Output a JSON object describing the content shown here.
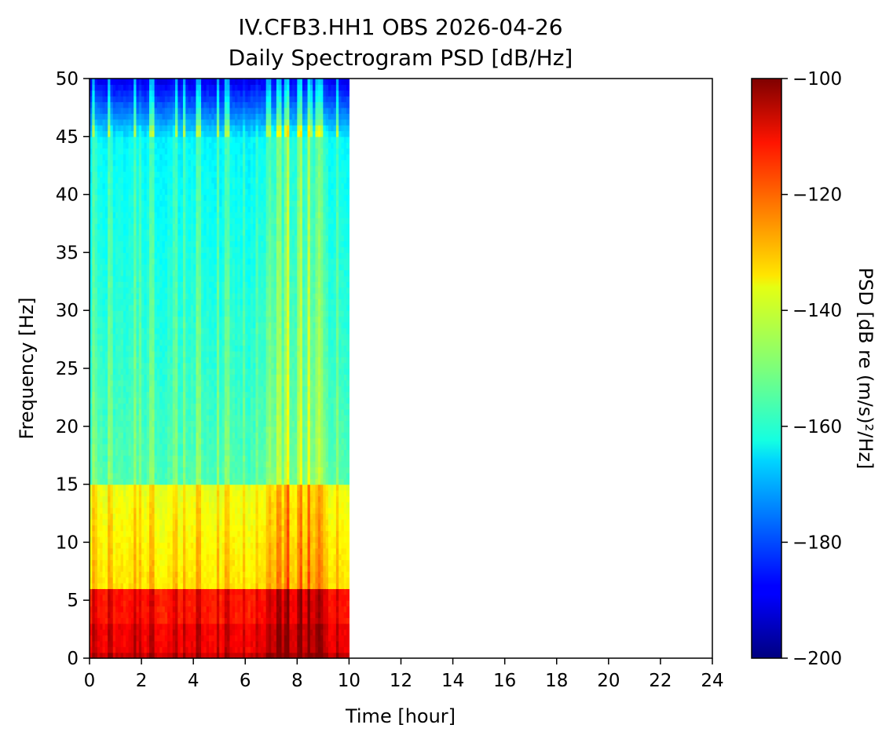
{
  "chart_data": {
    "type": "heatmap",
    "title": "IV.CFB3.HH1 OBS 2026-04-26",
    "subtitle": "Daily Spectrogram PSD [dB/Hz]",
    "xlabel": "Time [hour]",
    "ylabel": "Frequency [Hz]",
    "xlim": [
      0,
      24
    ],
    "ylim": [
      0,
      50
    ],
    "x_ticks": [
      0,
      2,
      4,
      6,
      8,
      10,
      12,
      14,
      16,
      18,
      20,
      22,
      24
    ],
    "y_ticks": [
      0,
      5,
      10,
      15,
      20,
      25,
      30,
      35,
      40,
      45,
      50
    ],
    "data_time_range": [
      0,
      10
    ],
    "colormap": "jet",
    "colorbar": {
      "label": "PSD [dB re (m/s)²/Hz]",
      "range": [
        -200,
        -100
      ],
      "ticks": [
        "−100",
        "−120",
        "−140",
        "−160",
        "−180",
        "−200"
      ]
    },
    "spectral_features": {
      "low_freq_band_hz": [
        0,
        6
      ],
      "low_freq_psd_db": -115,
      "mid_freq_band_hz": [
        6,
        15
      ],
      "mid_freq_psd_db": -140,
      "high_freq_band_hz": [
        15,
        45
      ],
      "high_freq_psd_db": -155,
      "top_band_hz": [
        45,
        50
      ],
      "top_band_psd_db": -190,
      "strong_events_hours": [
        2.4,
        4.2,
        6.9,
        7.3,
        7.6,
        8.1,
        8.45,
        8.9
      ]
    },
    "grid": false
  }
}
